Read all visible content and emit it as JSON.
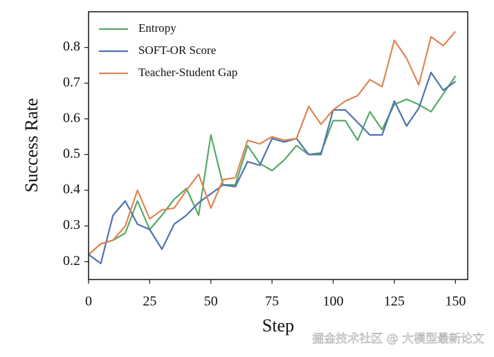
{
  "chart_data": {
    "type": "line",
    "x_label": "Step",
    "y_label": "Success Rate",
    "x": [
      0,
      5,
      10,
      15,
      20,
      25,
      30,
      35,
      40,
      45,
      50,
      55,
      60,
      65,
      70,
      75,
      80,
      85,
      90,
      95,
      100,
      105,
      110,
      115,
      120,
      125,
      130,
      135,
      140,
      145,
      150
    ],
    "series": [
      {
        "name": "Entropy",
        "color": "#55a868",
        "values": [
          0.22,
          0.25,
          0.26,
          0.28,
          0.37,
          0.29,
          0.33,
          0.375,
          0.405,
          0.33,
          0.555,
          0.415,
          0.415,
          0.525,
          0.475,
          0.455,
          0.485,
          0.525,
          0.5,
          0.505,
          0.595,
          0.595,
          0.54,
          0.62,
          0.57,
          0.64,
          0.655,
          0.64,
          0.62,
          0.67,
          0.72
        ]
      },
      {
        "name": "SOFT-OR Score",
        "color": "#4c72b0",
        "values": [
          0.22,
          0.195,
          0.33,
          0.37,
          0.305,
          0.29,
          0.235,
          0.305,
          0.33,
          0.365,
          0.39,
          0.415,
          0.41,
          0.48,
          0.47,
          0.545,
          0.535,
          0.545,
          0.5,
          0.5,
          0.625,
          0.625,
          0.59,
          0.555,
          0.555,
          0.65,
          0.58,
          0.63,
          0.73,
          0.68,
          0.705
        ]
      },
      {
        "name": "Teacher-Student Gap",
        "color": "#dd8452",
        "values": [
          0.22,
          0.25,
          0.26,
          0.3,
          0.4,
          0.32,
          0.345,
          0.35,
          0.4,
          0.445,
          0.35,
          0.43,
          0.435,
          0.54,
          0.53,
          0.55,
          0.54,
          0.545,
          0.635,
          0.585,
          0.625,
          0.65,
          0.665,
          0.71,
          0.69,
          0.82,
          0.77,
          0.695,
          0.83,
          0.805,
          0.845
        ]
      }
    ],
    "xlim": [
      0,
      155
    ],
    "ylim": [
      0.15,
      0.9
    ],
    "xticks": [
      0,
      25,
      50,
      75,
      100,
      125,
      150
    ],
    "yticks": [
      0.2,
      0.3,
      0.4,
      0.5,
      0.6,
      0.7,
      0.8
    ],
    "legend": "upper left",
    "watermark": "掘金技术社区 @ 大模型最新论文"
  }
}
